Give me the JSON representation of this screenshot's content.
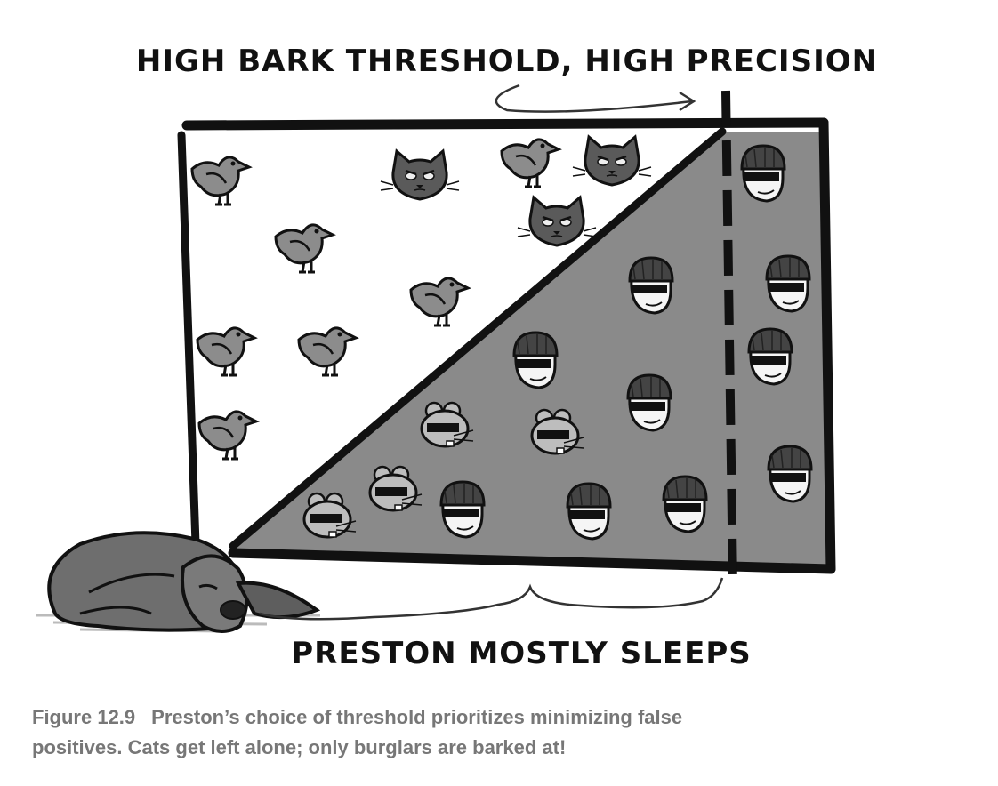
{
  "figure": {
    "top_label": "HIGH BARK THRESHOLD, HIGH PRECISION",
    "bottom_label": "PRESTON MOSTLY SLEEPS"
  },
  "caption": {
    "figure_number": "Figure 12.9",
    "text_line1": "Preston’s choice of threshold prioritizes minimizing false",
    "text_line2": "positives. Cats get left alone; only burglars are barked at!"
  },
  "colors": {
    "shaded_region": "#8a8a8a",
    "ink": "#111111",
    "bird": "#8c8c8c",
    "caption_text": "#777777"
  },
  "icons": {
    "bird": "bird-icon",
    "cat": "cat-face-icon",
    "mouse": "masked-mouse-icon",
    "burglar": "burglar-face-icon",
    "dog": "sleeping-dog-icon"
  }
}
